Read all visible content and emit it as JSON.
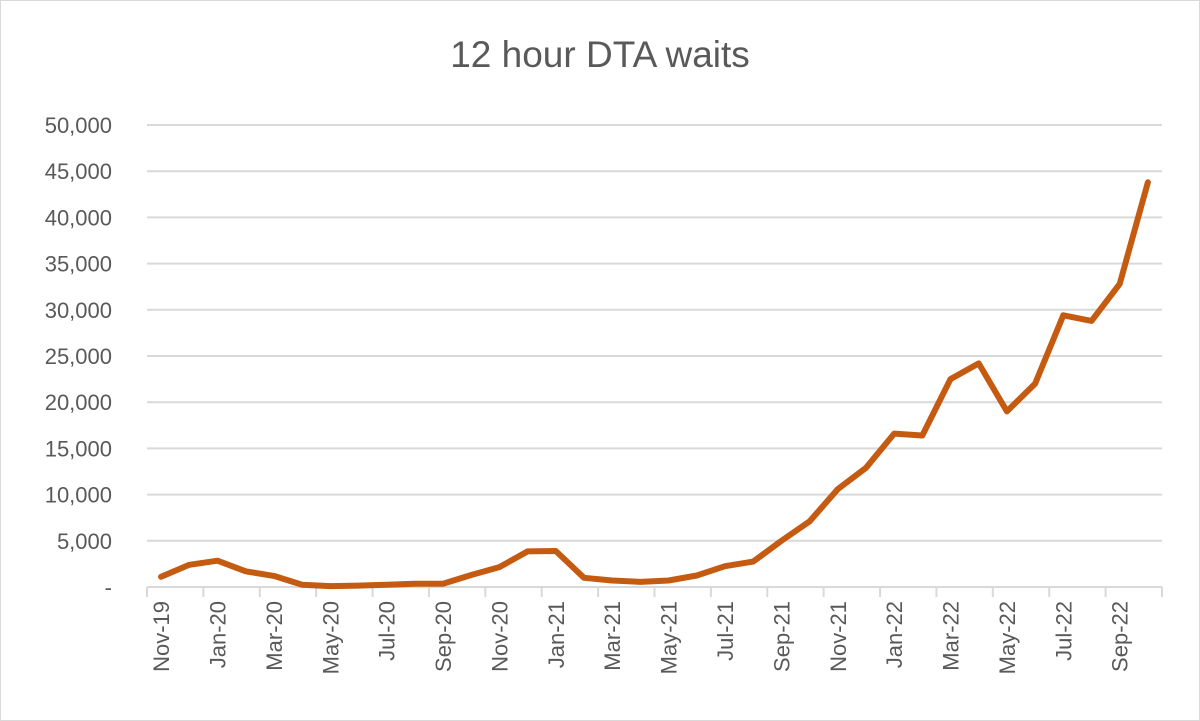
{
  "chart_data": {
    "type": "line",
    "title": "12 hour DTA waits",
    "xlabel": "",
    "ylabel": "",
    "ylim": [
      0,
      50000
    ],
    "y_ticks": [
      0,
      5000,
      10000,
      15000,
      20000,
      25000,
      30000,
      35000,
      40000,
      45000,
      50000
    ],
    "y_tick_labels": [
      "-",
      "5,000",
      "10,000",
      "15,000",
      "20,000",
      "25,000",
      "30,000",
      "35,000",
      "40,000",
      "45,000",
      "50,000"
    ],
    "x": [
      "Nov-19",
      "Dec-19",
      "Jan-20",
      "Feb-20",
      "Mar-20",
      "Apr-20",
      "May-20",
      "Jun-20",
      "Jul-20",
      "Aug-20",
      "Sep-20",
      "Oct-20",
      "Nov-20",
      "Dec-20",
      "Jan-21",
      "Feb-21",
      "Mar-21",
      "Apr-21",
      "May-21",
      "Jun-21",
      "Jul-21",
      "Aug-21",
      "Sep-21",
      "Oct-21",
      "Nov-21",
      "Dec-21",
      "Jan-22",
      "Feb-22",
      "Mar-22",
      "Apr-22",
      "May-22",
      "Jun-22",
      "Jul-22",
      "Aug-22",
      "Sep-22",
      "Oct-22"
    ],
    "x_tick_labels": [
      "Nov-19",
      "Jan-20",
      "Mar-20",
      "May-20",
      "Jul-20",
      "Sep-20",
      "Nov-20",
      "Jan-21",
      "Mar-21",
      "May-21",
      "Jul-21",
      "Sep-21",
      "Nov-21",
      "Jan-22",
      "Mar-22",
      "May-22",
      "Jul-22",
      "Sep-22"
    ],
    "series": [
      {
        "color": "#C55A11",
        "values": [
          1100,
          2400,
          2850,
          1700,
          1200,
          250,
          100,
          150,
          250,
          350,
          350,
          1300,
          2150,
          3850,
          3900,
          1000,
          700,
          550,
          700,
          1250,
          2250,
          2750,
          5000,
          7100,
          10600,
          12900,
          16600,
          16400,
          22500,
          24200,
          19000,
          22000,
          29400,
          28800,
          32800,
          43800
        ]
      }
    ],
    "grid": true,
    "legend": "none"
  },
  "colors": {
    "line": "#C55A11",
    "grid": "#d9d9d9",
    "axis_text": "#595959"
  }
}
